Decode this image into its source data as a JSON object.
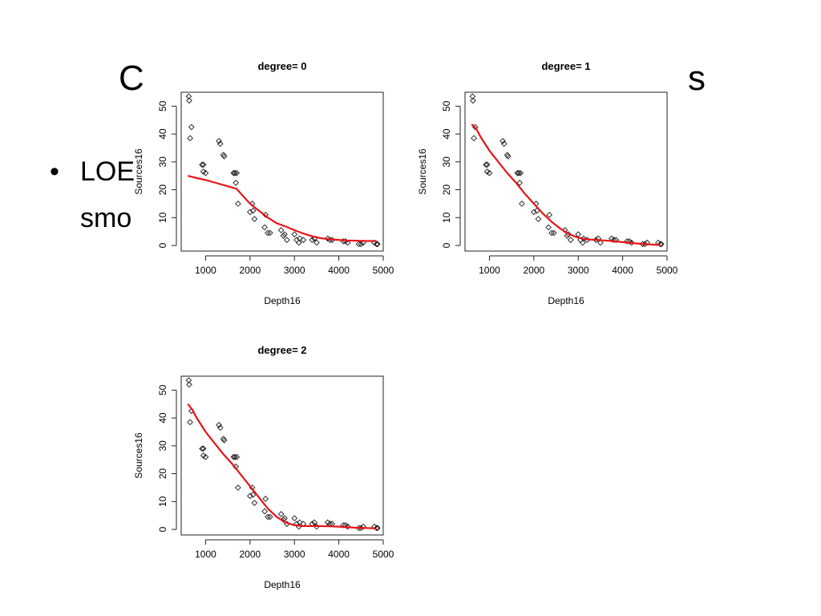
{
  "slide": {
    "title_partial": "C",
    "title_partial_end": "s",
    "bullet_line1": "LOE",
    "bullet_line2": "smo"
  },
  "colors": {
    "fit_line": "#e8141a",
    "points": "#1a1a1a",
    "axis": "#222222"
  },
  "chart_data": [
    {
      "type": "scatter",
      "title": "degree= 0",
      "xlabel": "Depth16",
      "ylabel": "Sources16",
      "xticks": [
        1000,
        2000,
        3000,
        4000,
        5000
      ],
      "yticks": [
        0,
        10,
        20,
        30,
        40,
        50
      ],
      "xlim": [
        450,
        5000
      ],
      "ylim": [
        -2,
        55
      ],
      "points": [
        [
          620,
          53.5
        ],
        [
          630,
          52
        ],
        [
          680,
          42.5
        ],
        [
          650,
          38.5
        ],
        [
          920,
          29
        ],
        [
          950,
          29
        ],
        [
          950,
          26.5
        ],
        [
          1000,
          26
        ],
        [
          1300,
          37.5
        ],
        [
          1330,
          36.5
        ],
        [
          1400,
          32.5
        ],
        [
          1420,
          32
        ],
        [
          1630,
          26
        ],
        [
          1660,
          26
        ],
        [
          1700,
          26
        ],
        [
          1680,
          22.5
        ],
        [
          1730,
          15
        ],
        [
          2000,
          12
        ],
        [
          2050,
          15
        ],
        [
          2100,
          9.5
        ],
        [
          2070,
          12.5
        ],
        [
          2350,
          11
        ],
        [
          2330,
          6.5
        ],
        [
          2400,
          4.5
        ],
        [
          2450,
          4.5
        ],
        [
          2700,
          5.5
        ],
        [
          2750,
          3.5
        ],
        [
          2780,
          4
        ],
        [
          2830,
          2
        ],
        [
          3000,
          4
        ],
        [
          3050,
          2
        ],
        [
          3100,
          1
        ],
        [
          3120,
          2.5
        ],
        [
          3200,
          2
        ],
        [
          3400,
          2
        ],
        [
          3450,
          2.5
        ],
        [
          3500,
          1
        ],
        [
          3750,
          2.5
        ],
        [
          3800,
          2
        ],
        [
          3850,
          2
        ],
        [
          4100,
          1.5
        ],
        [
          4150,
          1.5
        ],
        [
          4200,
          1
        ],
        [
          4450,
          0.5
        ],
        [
          4500,
          0.5
        ],
        [
          4550,
          1
        ],
        [
          4800,
          1
        ],
        [
          4850,
          0.5
        ],
        [
          4870,
          0.5
        ]
      ],
      "fit": [
        [
          600,
          25
        ],
        [
          800,
          24.2
        ],
        [
          1000,
          23.5
        ],
        [
          1200,
          22.6
        ],
        [
          1400,
          21.7
        ],
        [
          1600,
          20.8
        ],
        [
          1700,
          20.3
        ],
        [
          1800,
          18.5
        ],
        [
          2000,
          15
        ],
        [
          2200,
          12.5
        ],
        [
          2400,
          10
        ],
        [
          2600,
          8
        ],
        [
          2800,
          6.8
        ],
        [
          3000,
          5.5
        ],
        [
          3200,
          4.3
        ],
        [
          3400,
          3.3
        ],
        [
          3600,
          2.6
        ],
        [
          3800,
          2.2
        ],
        [
          4000,
          2
        ],
        [
          4200,
          1.8
        ],
        [
          4400,
          1.7
        ],
        [
          4600,
          1.6
        ],
        [
          4800,
          1.6
        ],
        [
          4850,
          1.6
        ]
      ]
    },
    {
      "type": "scatter",
      "title": "degree= 1",
      "xlabel": "Depth16",
      "ylabel": "Sources16",
      "xticks": [
        1000,
        2000,
        3000,
        4000,
        5000
      ],
      "yticks": [
        0,
        10,
        20,
        30,
        40,
        50
      ],
      "xlim": [
        450,
        5000
      ],
      "ylim": [
        -2,
        55
      ],
      "points": [
        [
          620,
          53.5
        ],
        [
          630,
          52
        ],
        [
          680,
          42.5
        ],
        [
          650,
          38.5
        ],
        [
          920,
          29
        ],
        [
          950,
          29
        ],
        [
          950,
          26.5
        ],
        [
          1000,
          26
        ],
        [
          1300,
          37.5
        ],
        [
          1330,
          36.5
        ],
        [
          1400,
          32.5
        ],
        [
          1420,
          32
        ],
        [
          1630,
          26
        ],
        [
          1660,
          26
        ],
        [
          1700,
          26
        ],
        [
          1680,
          22.5
        ],
        [
          1730,
          15
        ],
        [
          2000,
          12
        ],
        [
          2050,
          15
        ],
        [
          2100,
          9.5
        ],
        [
          2070,
          12.5
        ],
        [
          2350,
          11
        ],
        [
          2330,
          6.5
        ],
        [
          2400,
          4.5
        ],
        [
          2450,
          4.5
        ],
        [
          2700,
          5.5
        ],
        [
          2750,
          3.5
        ],
        [
          2780,
          4
        ],
        [
          2830,
          2
        ],
        [
          3000,
          4
        ],
        [
          3050,
          2
        ],
        [
          3100,
          1
        ],
        [
          3120,
          2.5
        ],
        [
          3200,
          2
        ],
        [
          3400,
          2
        ],
        [
          3450,
          2.5
        ],
        [
          3500,
          1
        ],
        [
          3750,
          2.5
        ],
        [
          3800,
          2
        ],
        [
          3850,
          2
        ],
        [
          4100,
          1.5
        ],
        [
          4150,
          1.5
        ],
        [
          4200,
          1
        ],
        [
          4450,
          0.5
        ],
        [
          4500,
          0.5
        ],
        [
          4550,
          1
        ],
        [
          4800,
          1
        ],
        [
          4850,
          0.5
        ],
        [
          4870,
          0.5
        ]
      ],
      "fit": [
        [
          600,
          43.5
        ],
        [
          700,
          42
        ],
        [
          800,
          39
        ],
        [
          1000,
          34
        ],
        [
          1200,
          30
        ],
        [
          1400,
          26
        ],
        [
          1600,
          22.5
        ],
        [
          1800,
          18.5
        ],
        [
          2000,
          15
        ],
        [
          2200,
          11.5
        ],
        [
          2400,
          8.5
        ],
        [
          2600,
          6
        ],
        [
          2800,
          4
        ],
        [
          3000,
          2.8
        ],
        [
          3200,
          2.2
        ],
        [
          3400,
          2
        ],
        [
          3600,
          1.8
        ],
        [
          3800,
          1.5
        ],
        [
          4000,
          1.2
        ],
        [
          4200,
          0.9
        ],
        [
          4400,
          0.6
        ],
        [
          4600,
          0.4
        ],
        [
          4800,
          0.2
        ],
        [
          4850,
          0.2
        ]
      ]
    },
    {
      "type": "scatter",
      "title": "degree= 2",
      "xlabel": "Depth16",
      "ylabel": "Sources16",
      "xticks": [
        1000,
        2000,
        3000,
        4000,
        5000
      ],
      "yticks": [
        0,
        10,
        20,
        30,
        40,
        50
      ],
      "xlim": [
        450,
        5000
      ],
      "ylim": [
        -2,
        55
      ],
      "points": [
        [
          620,
          53.5
        ],
        [
          630,
          52
        ],
        [
          680,
          42.5
        ],
        [
          650,
          38.5
        ],
        [
          920,
          29
        ],
        [
          950,
          29
        ],
        [
          950,
          26.5
        ],
        [
          1000,
          26
        ],
        [
          1300,
          37.5
        ],
        [
          1330,
          36.5
        ],
        [
          1400,
          32.5
        ],
        [
          1420,
          32
        ],
        [
          1630,
          26
        ],
        [
          1660,
          26
        ],
        [
          1700,
          26
        ],
        [
          1680,
          22.5
        ],
        [
          1730,
          15
        ],
        [
          2000,
          12
        ],
        [
          2050,
          15
        ],
        [
          2100,
          9.5
        ],
        [
          2070,
          12.5
        ],
        [
          2350,
          11
        ],
        [
          2330,
          6.5
        ],
        [
          2400,
          4.5
        ],
        [
          2450,
          4.5
        ],
        [
          2700,
          5.5
        ],
        [
          2750,
          3.5
        ],
        [
          2780,
          4
        ],
        [
          2830,
          2
        ],
        [
          3000,
          4
        ],
        [
          3050,
          2
        ],
        [
          3100,
          1
        ],
        [
          3120,
          2.5
        ],
        [
          3200,
          2
        ],
        [
          3400,
          2
        ],
        [
          3450,
          2.5
        ],
        [
          3500,
          1
        ],
        [
          3750,
          2.5
        ],
        [
          3800,
          2
        ],
        [
          3850,
          2
        ],
        [
          4100,
          1.5
        ],
        [
          4150,
          1.5
        ],
        [
          4200,
          1
        ],
        [
          4450,
          0.5
        ],
        [
          4500,
          0.5
        ],
        [
          4550,
          1
        ],
        [
          4800,
          1
        ],
        [
          4850,
          0.5
        ],
        [
          4870,
          0.5
        ]
      ],
      "fit": [
        [
          600,
          45
        ],
        [
          700,
          43
        ],
        [
          800,
          40
        ],
        [
          1000,
          35
        ],
        [
          1200,
          31
        ],
        [
          1400,
          27
        ],
        [
          1600,
          23.5
        ],
        [
          1800,
          19.5
        ],
        [
          2000,
          15.5
        ],
        [
          2200,
          11.5
        ],
        [
          2400,
          7.5
        ],
        [
          2600,
          4.5
        ],
        [
          2800,
          2.5
        ],
        [
          3000,
          1.5
        ],
        [
          3200,
          1.2
        ],
        [
          3400,
          1.2
        ],
        [
          3600,
          1.2
        ],
        [
          3800,
          1.1
        ],
        [
          4000,
          1
        ],
        [
          4200,
          0.8
        ],
        [
          4400,
          0.6
        ],
        [
          4600,
          0.5
        ],
        [
          4800,
          0.4
        ],
        [
          4850,
          0.4
        ]
      ]
    }
  ]
}
